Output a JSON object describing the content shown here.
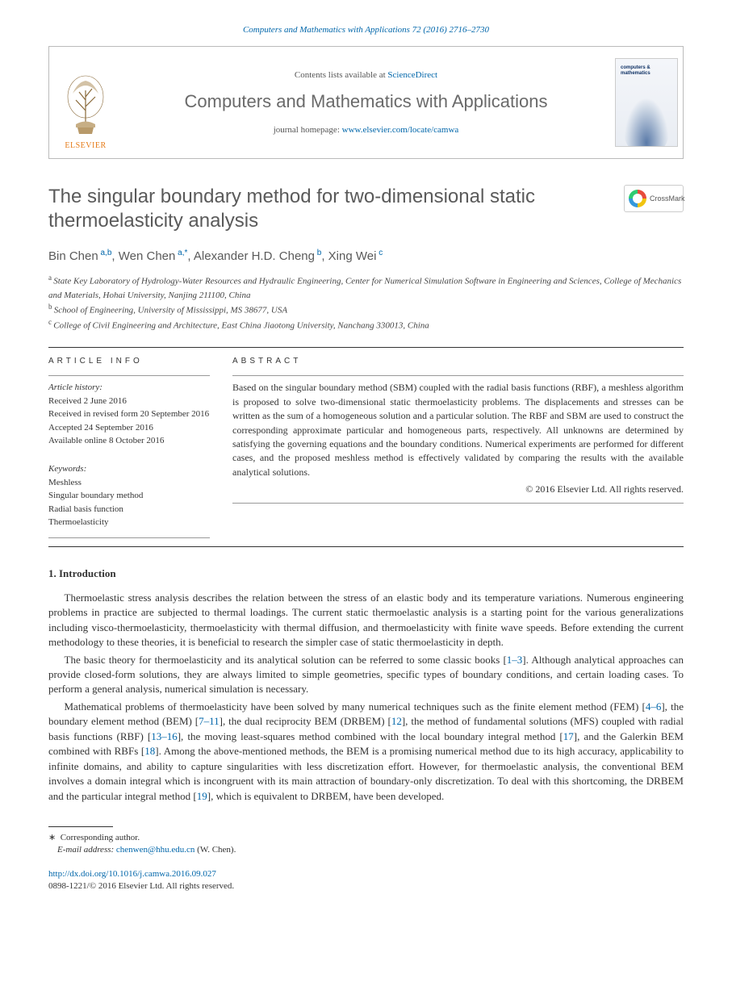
{
  "top_reference": "Computers and Mathematics with Applications 72 (2016) 2716–2730",
  "header": {
    "publisher_label": "ELSEVIER",
    "contents_prefix": "Contents lists available at ",
    "contents_link": "ScienceDirect",
    "journal_name": "Computers and Mathematics with Applications",
    "homepage_prefix": "journal homepage: ",
    "homepage_link": "www.elsevier.com/locate/camwa",
    "cover_title": "computers & mathematics"
  },
  "crossmark_label": "CrossMark",
  "article": {
    "title": "The singular boundary method for two-dimensional static thermoelasticity analysis",
    "authors_html": "Bin Chen|a,b|, Wen Chen|a,*|, Alexander H.D. Cheng|b|, Xing Wei|c|",
    "authors": [
      {
        "name": "Bin Chen",
        "marks": "a,b"
      },
      {
        "name": "Wen Chen",
        "marks": "a,*"
      },
      {
        "name": "Alexander H.D. Cheng",
        "marks": "b"
      },
      {
        "name": "Xing Wei",
        "marks": "c"
      }
    ],
    "affiliations": [
      {
        "mark": "a",
        "text": "State Key Laboratory of Hydrology-Water Resources and Hydraulic Engineering, Center for Numerical Simulation Software in Engineering and Sciences, College of Mechanics and Materials, Hohai University, Nanjing 211100, China"
      },
      {
        "mark": "b",
        "text": "School of Engineering, University of Mississippi, MS 38677, USA"
      },
      {
        "mark": "c",
        "text": "College of Civil Engineering and Architecture, East China Jiaotong University, Nanchang 330013, China"
      }
    ]
  },
  "info": {
    "label": "ARTICLE INFO",
    "history_label": "Article history:",
    "history": [
      "Received 2 June 2016",
      "Received in revised form 20 September 2016",
      "Accepted 24 September 2016",
      "Available online 8 October 2016"
    ],
    "keywords_label": "Keywords:",
    "keywords": [
      "Meshless",
      "Singular boundary method",
      "Radial basis function",
      "Thermoelasticity"
    ]
  },
  "abstract": {
    "label": "ABSTRACT",
    "text": "Based on the singular boundary method (SBM) coupled with the radial basis functions (RBF), a meshless algorithm is proposed to solve two-dimensional static thermoelasticity problems. The displacements and stresses can be written as the sum of a homogeneous solution and a particular solution. The RBF and SBM are used to construct the corresponding approximate particular and homogeneous parts, respectively. All unknowns are determined by satisfying the governing equations and the boundary conditions. Numerical experiments are performed for different cases, and the proposed meshless method is effectively validated by comparing the results with the available analytical solutions.",
    "copyright": "© 2016 Elsevier Ltd. All rights reserved."
  },
  "sections": {
    "intro_heading": "1.  Introduction",
    "paragraphs": [
      "Thermoelastic stress analysis describes the relation between the stress of an elastic body and its temperature variations. Numerous engineering problems in practice are subjected to thermal loadings. The current static thermoelastic analysis is a starting point for the various generalizations including visco-thermoelasticity, thermoelasticity with thermal diffusion, and thermoelasticity with finite wave speeds. Before extending the current methodology to these theories, it is beneficial to research the simpler case of static thermoelasticity in depth.",
      "The basic theory for thermoelasticity and its analytical solution can be referred to some classic books [1–3]. Although analytical approaches can provide closed-form solutions, they are always limited to simple geometries, specific types of boundary conditions, and certain loading cases. To perform a general analysis, numerical simulation is necessary.",
      "Mathematical problems of thermoelasticity have been solved by many numerical techniques such as the finite element method (FEM) [4–6], the boundary element method (BEM) [7–11], the dual reciprocity BEM (DRBEM) [12], the method of fundamental solutions (MFS) coupled with radial basis functions (RBF) [13–16], the moving least-squares method combined with the local boundary integral method [17], and the Galerkin BEM combined with RBFs [18]. Among the above-mentioned methods, the BEM is a promising numerical method due to its high accuracy, applicability to infinite domains, and ability to capture singularities with less discretization effort. However, for thermoelastic analysis, the conventional BEM involves a domain integral which is incongruent with its main attraction of boundary-only discretization. To deal with this shortcoming, the DRBEM and the particular integral method [19], which is equivalent to DRBEM, have been developed."
    ],
    "refs": {
      "p2": "1–3",
      "p3a": "4–6",
      "p3b": "7–11",
      "p3c": "12",
      "p3d": "13–16",
      "p3e": "17",
      "p3f": "18",
      "p3g": "19"
    }
  },
  "footnote": {
    "corr_label": "Corresponding author.",
    "email_label": "E-mail address:",
    "email": "chenwen@hhu.edu.cn",
    "email_author": "(W. Chen)."
  },
  "footer": {
    "doi": "http://dx.doi.org/10.1016/j.camwa.2016.09.027",
    "issn_line": "0898-1221/© 2016 Elsevier Ltd. All rights reserved."
  },
  "colors": {
    "link": "#0066aa",
    "heading_gray": "#5a5a5a",
    "elsevier_orange": "#e67a17",
    "border_gray": "#bbbbbb",
    "text": "#333333"
  }
}
